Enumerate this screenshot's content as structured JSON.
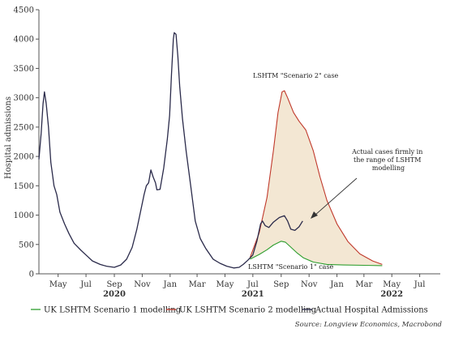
{
  "chart_data": {
    "type": "line",
    "ylabel": "Hospital admissions",
    "ylim": [
      0,
      4500
    ],
    "yticks": [
      0,
      500,
      1000,
      1500,
      2000,
      2500,
      3000,
      3500,
      4000,
      4500
    ],
    "x_range": [
      "2020-03-20",
      "2022-08-15"
    ],
    "x_ticks": [
      {
        "label": "May",
        "date": "2020-05-01"
      },
      {
        "label": "Jul",
        "date": "2020-07-01"
      },
      {
        "label": "Sep",
        "date": "2020-09-01"
      },
      {
        "label": "Nov",
        "date": "2020-11-01"
      },
      {
        "label": "Jan",
        "date": "2021-01-01"
      },
      {
        "label": "Mar",
        "date": "2021-03-01"
      },
      {
        "label": "May",
        "date": "2021-05-01"
      },
      {
        "label": "Jul",
        "date": "2021-07-01"
      },
      {
        "label": "Sep",
        "date": "2021-09-01"
      },
      {
        "label": "Nov",
        "date": "2021-11-01"
      },
      {
        "label": "Jan",
        "date": "2022-01-01"
      },
      {
        "label": "Mar",
        "date": "2022-03-01"
      },
      {
        "label": "May",
        "date": "2022-05-01"
      },
      {
        "label": "Jul",
        "date": "2022-07-01"
      }
    ],
    "year_labels": [
      {
        "label": "2020",
        "date": "2020-09-01"
      },
      {
        "label": "2021",
        "date": "2021-07-01"
      },
      {
        "label": "2022",
        "date": "2022-05-01"
      }
    ],
    "series": [
      {
        "name": "UK LSHTM Scenario 1 modelling",
        "color": "#2e9e2e",
        "points": [
          [
            "2021-06-25",
            250
          ],
          [
            "2021-07-15",
            330
          ],
          [
            "2021-08-01",
            410
          ],
          [
            "2021-08-15",
            490
          ],
          [
            "2021-09-01",
            555
          ],
          [
            "2021-09-10",
            540
          ],
          [
            "2021-09-20",
            470
          ],
          [
            "2021-10-05",
            360
          ],
          [
            "2021-10-20",
            270
          ],
          [
            "2021-11-10",
            200
          ],
          [
            "2021-12-10",
            160
          ],
          [
            "2022-01-15",
            150
          ],
          [
            "2022-03-01",
            145
          ],
          [
            "2022-04-10",
            140
          ]
        ]
      },
      {
        "name": "UK LSHTM Scenario 2 modelling",
        "color": "#c0392b",
        "points": [
          [
            "2021-06-25",
            280
          ],
          [
            "2021-07-15",
            700
          ],
          [
            "2021-08-01",
            1300
          ],
          [
            "2021-08-15",
            2100
          ],
          [
            "2021-08-25",
            2750
          ],
          [
            "2021-09-03",
            3100
          ],
          [
            "2021-09-08",
            3120
          ],
          [
            "2021-09-15",
            3000
          ],
          [
            "2021-09-28",
            2750
          ],
          [
            "2021-10-10",
            2600
          ],
          [
            "2021-10-25",
            2450
          ],
          [
            "2021-11-10",
            2100
          ],
          [
            "2021-11-25",
            1650
          ],
          [
            "2021-12-10",
            1250
          ],
          [
            "2022-01-01",
            850
          ],
          [
            "2022-01-25",
            550
          ],
          [
            "2022-02-20",
            340
          ],
          [
            "2022-03-20",
            220
          ],
          [
            "2022-04-10",
            160
          ]
        ]
      },
      {
        "name": "Actual Hospital Admissions",
        "color": "#2a2a4a",
        "points": [
          [
            "2020-03-20",
            1950
          ],
          [
            "2020-03-25",
            2400
          ],
          [
            "2020-03-29",
            2900
          ],
          [
            "2020-04-01",
            3100
          ],
          [
            "2020-04-05",
            2900
          ],
          [
            "2020-04-10",
            2500
          ],
          [
            "2020-04-15",
            1900
          ],
          [
            "2020-04-22",
            1500
          ],
          [
            "2020-04-28",
            1350
          ],
          [
            "2020-05-05",
            1050
          ],
          [
            "2020-05-15",
            850
          ],
          [
            "2020-05-25",
            680
          ],
          [
            "2020-06-05",
            520
          ],
          [
            "2020-06-20",
            400
          ],
          [
            "2020-07-01",
            320
          ],
          [
            "2020-07-15",
            220
          ],
          [
            "2020-08-01",
            160
          ],
          [
            "2020-08-15",
            130
          ],
          [
            "2020-09-01",
            110
          ],
          [
            "2020-09-15",
            150
          ],
          [
            "2020-09-28",
            250
          ],
          [
            "2020-10-10",
            450
          ],
          [
            "2020-10-20",
            750
          ],
          [
            "2020-10-28",
            1050
          ],
          [
            "2020-11-05",
            1350
          ],
          [
            "2020-11-10",
            1500
          ],
          [
            "2020-11-15",
            1550
          ],
          [
            "2020-11-20",
            1770
          ],
          [
            "2020-11-25",
            1650
          ],
          [
            "2020-11-30",
            1550
          ],
          [
            "2020-12-03",
            1430
          ],
          [
            "2020-12-10",
            1440
          ],
          [
            "2020-12-18",
            1800
          ],
          [
            "2020-12-26",
            2300
          ],
          [
            "2020-12-31",
            2700
          ],
          [
            "2021-01-04",
            3400
          ],
          [
            "2021-01-08",
            4000
          ],
          [
            "2021-01-10",
            4110
          ],
          [
            "2021-01-14",
            4080
          ],
          [
            "2021-01-18",
            3700
          ],
          [
            "2021-01-22",
            3200
          ],
          [
            "2021-01-28",
            2650
          ],
          [
            "2021-02-05",
            2100
          ],
          [
            "2021-02-15",
            1500
          ],
          [
            "2021-02-25",
            900
          ],
          [
            "2021-03-08",
            600
          ],
          [
            "2021-03-20",
            430
          ],
          [
            "2021-04-05",
            250
          ],
          [
            "2021-04-20",
            180
          ],
          [
            "2021-05-05",
            130
          ],
          [
            "2021-05-20",
            100
          ],
          [
            "2021-06-01",
            110
          ],
          [
            "2021-06-10",
            160
          ],
          [
            "2021-06-20",
            230
          ],
          [
            "2021-07-01",
            320
          ],
          [
            "2021-07-10",
            560
          ],
          [
            "2021-07-18",
            850
          ],
          [
            "2021-07-22",
            900
          ],
          [
            "2021-07-28",
            820
          ],
          [
            "2021-08-05",
            790
          ],
          [
            "2021-08-15",
            880
          ],
          [
            "2021-08-28",
            960
          ],
          [
            "2021-09-08",
            990
          ],
          [
            "2021-09-15",
            900
          ],
          [
            "2021-09-22",
            760
          ],
          [
            "2021-10-01",
            740
          ],
          [
            "2021-10-10",
            800
          ],
          [
            "2021-10-18",
            900
          ]
        ]
      }
    ],
    "annotations": [
      {
        "text": "LSHTM \"Scenario 2\" case"
      },
      {
        "text": "LSHTM \"Scenario 1\" case"
      },
      {
        "lines": [
          "Actual cases firmly in",
          "the range of LSHTM",
          "modelling"
        ]
      }
    ],
    "shaded_region_color": "#f3e7d3",
    "legend_position": "bottom",
    "grid": false,
    "source": "Source: Longview Economics, Macrobond"
  }
}
